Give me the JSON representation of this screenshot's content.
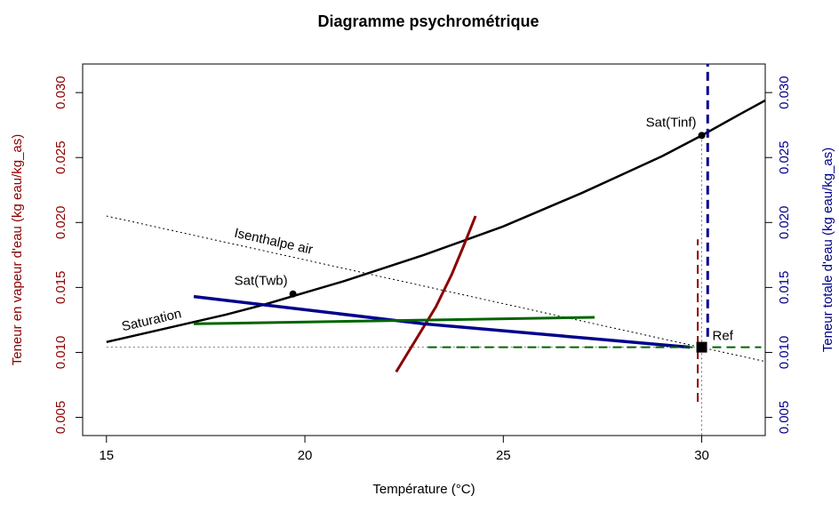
{
  "chart_data": {
    "type": "line",
    "title": "Diagramme psychrométrique",
    "xlabel": "Température (°C)",
    "ylabel": "Teneur en vapeur d'eau (kg eau/kg_as)",
    "y2label": "Teneur totale d'eau  (kg eau/kg_as)",
    "ylabel_color": "#8b0000",
    "y2label_color": "#00008b",
    "xlim": [
      14.4,
      31.6
    ],
    "ylim": [
      0.0036,
      0.0322
    ],
    "y2lim": [
      0.0036,
      0.0322
    ],
    "xticks": [
      15,
      20,
      25,
      30
    ],
    "yticks": [
      {
        "value": 0.005,
        "label": "0.005"
      },
      {
        "value": 0.01,
        "label": "0.010"
      },
      {
        "value": 0.015,
        "label": "0.015"
      },
      {
        "value": 0.02,
        "label": "0.020"
      },
      {
        "value": 0.025,
        "label": "0.025"
      },
      {
        "value": 0.03,
        "label": "0.030"
      }
    ],
    "y2ticks": [
      {
        "value": 0.005,
        "label": "0.005"
      },
      {
        "value": 0.01,
        "label": "0.010"
      },
      {
        "value": 0.015,
        "label": "0.015"
      },
      {
        "value": 0.02,
        "label": "0.020"
      },
      {
        "value": 0.025,
        "label": "0.025"
      },
      {
        "value": 0.03,
        "label": "0.030"
      }
    ],
    "series": [
      {
        "name": "Saturation",
        "color": "#000000",
        "style": "solid",
        "width": 2.5,
        "x": [
          15,
          16,
          17,
          18,
          19,
          20,
          21,
          22,
          23,
          24,
          25,
          26,
          27,
          28,
          29,
          30,
          31,
          31.6
        ],
        "values": [
          0.0108,
          0.0115,
          0.0122,
          0.0129,
          0.0137,
          0.0146,
          0.0155,
          0.0165,
          0.0175,
          0.0186,
          0.0197,
          0.021,
          0.0223,
          0.0237,
          0.0251,
          0.0267,
          0.0284,
          0.0294
        ]
      },
      {
        "name": "Isenthalpe air",
        "color": "#000000",
        "style": "dotted",
        "width": 1,
        "x": [
          15,
          31.6
        ],
        "values": [
          0.0205,
          0.0093
        ]
      },
      {
        "color": "#555555",
        "style": "dotted",
        "width": 0.8,
        "x": [
          15,
          30
        ],
        "values": [
          0.0104,
          0.0104
        ]
      },
      {
        "color": "#555555",
        "style": "dotted",
        "width": 0.8,
        "x": [
          30,
          30
        ],
        "values": [
          0.0267,
          0.0036
        ]
      },
      {
        "color": "#8b0000",
        "style": "solid",
        "width": 3,
        "x": [
          22.3,
          22.8,
          23.3,
          23.7,
          24,
          24.3
        ],
        "values": [
          0.0085,
          0.011,
          0.0135,
          0.016,
          0.0182,
          0.0205
        ]
      },
      {
        "color": "#8b0000",
        "style": "dashed",
        "width": 2,
        "x": [
          29.9,
          29.9
        ],
        "values": [
          0.0062,
          0.0187
        ]
      },
      {
        "color": "#00008b",
        "style": "dashed",
        "width": 3,
        "axis": "y2",
        "x": [
          30.15,
          30.15
        ],
        "values": [
          0.0112,
          0.0322
        ]
      },
      {
        "color": "#00008b",
        "style": "solid",
        "width": 3.5,
        "axis": "y2",
        "x": [
          17.2,
          23,
          29.7
        ],
        "values": [
          0.0143,
          0.0122,
          0.0104
        ]
      },
      {
        "color": "#006400",
        "style": "solid",
        "width": 3,
        "x": [
          17.2,
          27.3
        ],
        "values": [
          0.0122,
          0.0127
        ]
      },
      {
        "color": "#006400",
        "style": "dashed",
        "width": 2,
        "x": [
          23.1,
          31.5
        ],
        "values": [
          0.0104,
          0.0104
        ]
      },
      {
        "name": "Sat(Twb)",
        "color": "#000000",
        "style": "point",
        "x": [
          19.7
        ],
        "values": [
          0.0145
        ]
      },
      {
        "name": "Sat(Tinf)",
        "color": "#000000",
        "style": "point",
        "x": [
          30
        ],
        "values": [
          0.0267
        ]
      },
      {
        "name": "Ref",
        "color": "#000000",
        "style": "square",
        "x": [
          30
        ],
        "values": [
          0.0104
        ]
      }
    ]
  }
}
